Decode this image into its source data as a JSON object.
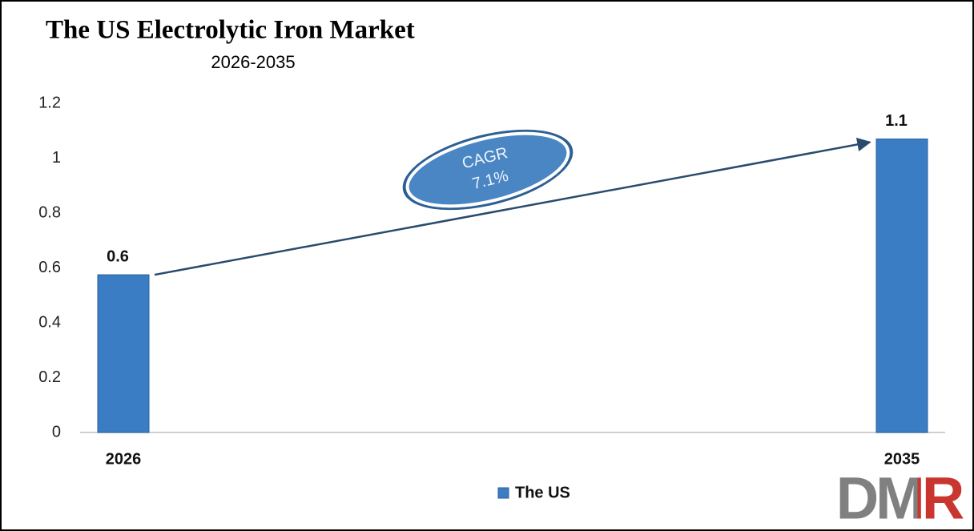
{
  "chart_data": {
    "type": "bar",
    "title": "The US Electrolytic Iron Market",
    "subtitle": "2026-2035",
    "categories": [
      "2026",
      "2035"
    ],
    "series": [
      {
        "name": "The US",
        "color": "#3b7dc4",
        "values": [
          0.575,
          1.07
        ],
        "value_labels": [
          "0.6",
          "1.1"
        ]
      }
    ],
    "ylim": [
      0,
      1.2
    ],
    "yticks": [
      0,
      0.2,
      0.4,
      0.6,
      0.8,
      1,
      1.2
    ],
    "grid": false,
    "annotations": [
      "CAGR",
      "7.1%"
    ],
    "legend": "bottom"
  },
  "logo": "DMR"
}
